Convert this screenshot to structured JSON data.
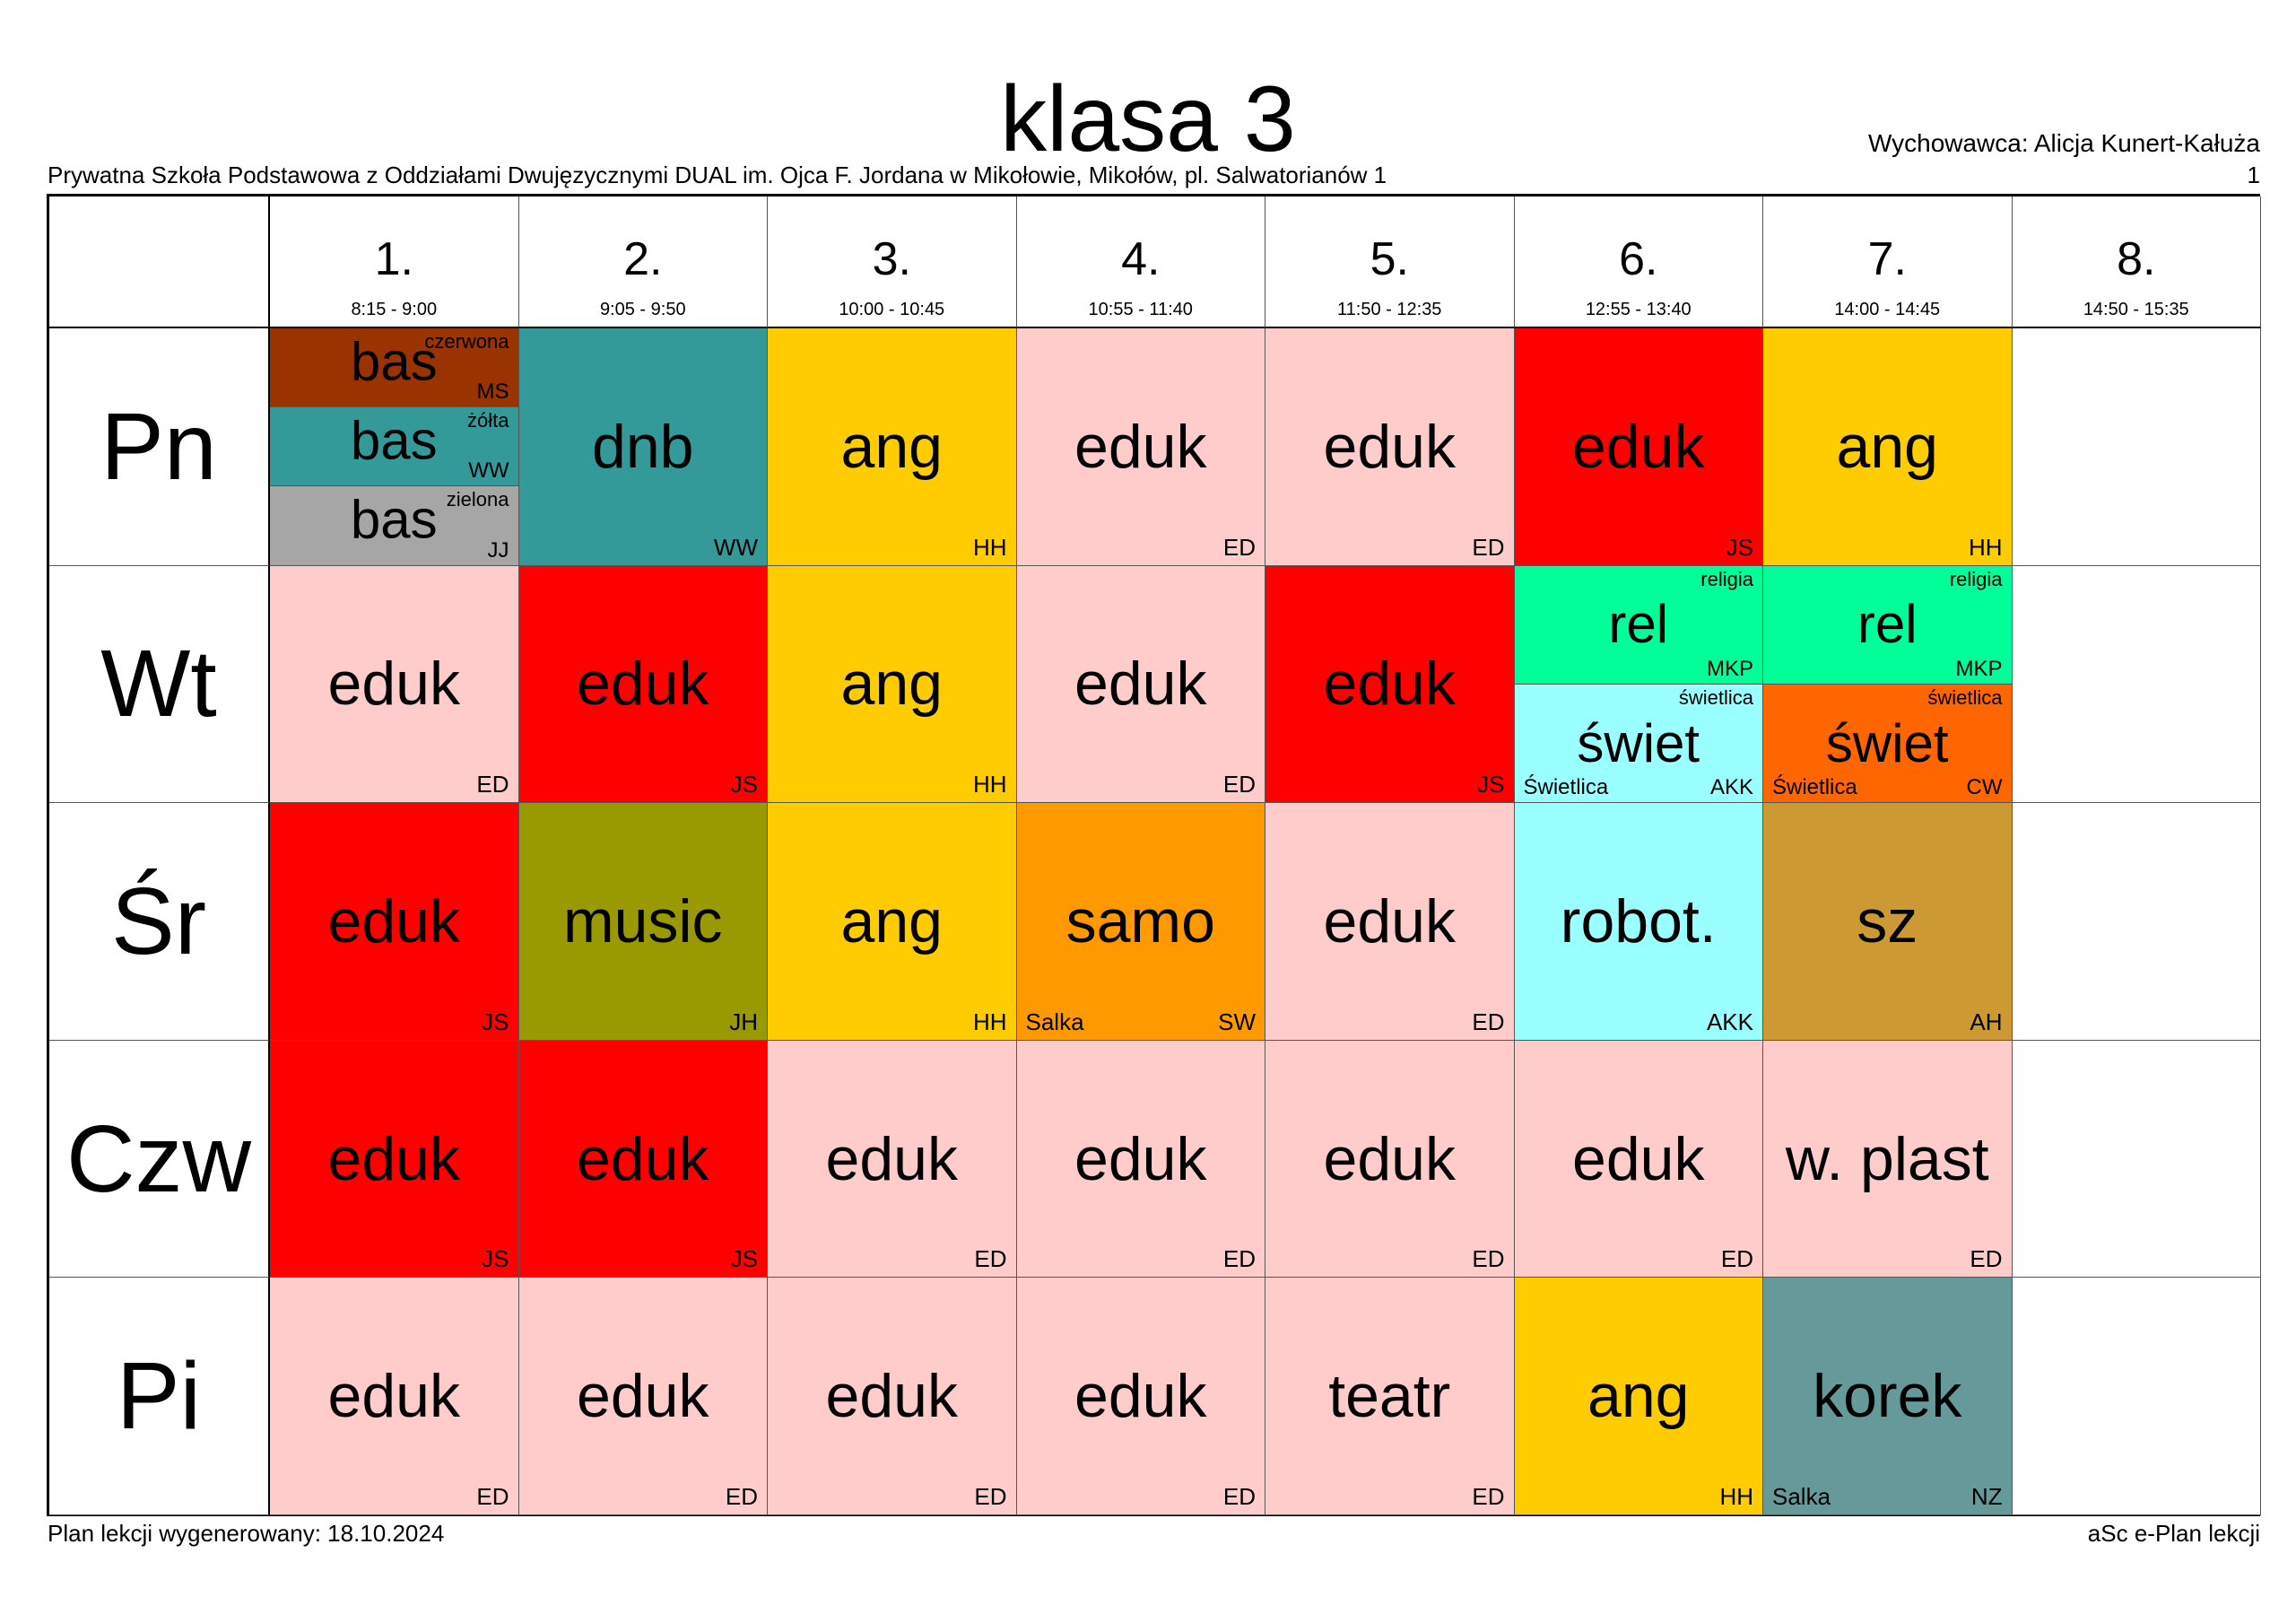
{
  "header": {
    "title": "klasa 3",
    "school": "Prywatna Szkoła Podstawowa z Oddziałami Dwujęzycznymi DUAL im. Ojca F. Jordana w Mikołowie, Mikołów, pl. Salwatorianów 1",
    "teacher": "Wychowawca: Alicja Kunert-Kałuża",
    "page_number": "1"
  },
  "periods": [
    {
      "num": "1.",
      "time": "8:15 - 9:00"
    },
    {
      "num": "2.",
      "time": "9:05 - 9:50"
    },
    {
      "num": "3.",
      "time": "10:00 - 10:45"
    },
    {
      "num": "4.",
      "time": "10:55 - 11:40"
    },
    {
      "num": "5.",
      "time": "11:50 - 12:35"
    },
    {
      "num": "6.",
      "time": "12:55 - 13:40"
    },
    {
      "num": "7.",
      "time": "14:00 - 14:45"
    },
    {
      "num": "8.",
      "time": "14:50 - 15:35"
    }
  ],
  "days": [
    "Pn",
    "Wt",
    "Śr",
    "Czw",
    "Pi"
  ],
  "lessons": [
    {
      "day": 0,
      "period": 0,
      "part": 0,
      "parts": 3,
      "subject": "bas",
      "teacher": "MS",
      "group": "czerwona",
      "color": "#993300"
    },
    {
      "day": 0,
      "period": 0,
      "part": 1,
      "parts": 3,
      "subject": "bas",
      "teacher": "WW",
      "group": "żółta",
      "color": "#339999"
    },
    {
      "day": 0,
      "period": 0,
      "part": 2,
      "parts": 3,
      "subject": "bas",
      "teacher": "JJ",
      "group": "zielona",
      "color": "#A6A6A6"
    },
    {
      "day": 0,
      "period": 1,
      "subject": "dnb",
      "teacher": "WW",
      "color": "#339999"
    },
    {
      "day": 0,
      "period": 2,
      "subject": "ang",
      "teacher": "HH",
      "color": "#FFCC00"
    },
    {
      "day": 0,
      "period": 3,
      "subject": "eduk",
      "teacher": "ED",
      "color": "#FFCCCC"
    },
    {
      "day": 0,
      "period": 4,
      "subject": "eduk",
      "teacher": "ED",
      "color": "#FFCCCC"
    },
    {
      "day": 0,
      "period": 5,
      "subject": "eduk",
      "teacher": "JS",
      "color": "#FF0000"
    },
    {
      "day": 0,
      "period": 6,
      "subject": "ang",
      "teacher": "HH",
      "color": "#FFCC00"
    },
    {
      "day": 1,
      "period": 0,
      "subject": "eduk",
      "teacher": "ED",
      "color": "#FFCCCC"
    },
    {
      "day": 1,
      "period": 1,
      "subject": "eduk",
      "teacher": "JS",
      "color": "#FF0000"
    },
    {
      "day": 1,
      "period": 2,
      "subject": "ang",
      "teacher": "HH",
      "color": "#FFCC00"
    },
    {
      "day": 1,
      "period": 3,
      "subject": "eduk",
      "teacher": "ED",
      "color": "#FFCCCC"
    },
    {
      "day": 1,
      "period": 4,
      "subject": "eduk",
      "teacher": "JS",
      "color": "#FF0000"
    },
    {
      "day": 1,
      "period": 5,
      "part": 0,
      "parts": 2,
      "subject": "rel",
      "teacher": "MKP",
      "group": "religia",
      "color": "#00FF99"
    },
    {
      "day": 1,
      "period": 5,
      "part": 1,
      "parts": 2,
      "subject": "świet",
      "teacher": "AKK",
      "group": "świetlica",
      "room": "Świetlica",
      "color": "#99FFFF"
    },
    {
      "day": 1,
      "period": 6,
      "part": 0,
      "parts": 2,
      "subject": "rel",
      "teacher": "MKP",
      "group": "religia",
      "color": "#00FF99"
    },
    {
      "day": 1,
      "period": 6,
      "part": 1,
      "parts": 2,
      "subject": "świet",
      "teacher": "CW",
      "group": "świetlica",
      "room": "Świetlica",
      "color": "#FF6600"
    },
    {
      "day": 2,
      "period": 0,
      "subject": "eduk",
      "teacher": "JS",
      "color": "#FF0000"
    },
    {
      "day": 2,
      "period": 1,
      "subject": "music",
      "teacher": "JH",
      "color": "#999900"
    },
    {
      "day": 2,
      "period": 2,
      "subject": "ang",
      "teacher": "HH",
      "color": "#FFCC00"
    },
    {
      "day": 2,
      "period": 3,
      "subject": "samo",
      "teacher": "SW",
      "room": "Salka",
      "color": "#FF9900"
    },
    {
      "day": 2,
      "period": 4,
      "subject": "eduk",
      "teacher": "ED",
      "color": "#FFCCCC"
    },
    {
      "day": 2,
      "period": 5,
      "subject": "robot.",
      "teacher": "AKK",
      "color": "#99FFFF"
    },
    {
      "day": 2,
      "period": 6,
      "subject": "sz",
      "teacher": "AH",
      "color": "#CC9933"
    },
    {
      "day": 3,
      "period": 0,
      "subject": "eduk",
      "teacher": "JS",
      "color": "#FF0000"
    },
    {
      "day": 3,
      "period": 1,
      "subject": "eduk",
      "teacher": "JS",
      "color": "#FF0000"
    },
    {
      "day": 3,
      "period": 2,
      "subject": "eduk",
      "teacher": "ED",
      "color": "#FFCCCC"
    },
    {
      "day": 3,
      "period": 3,
      "subject": "eduk",
      "teacher": "ED",
      "color": "#FFCCCC"
    },
    {
      "day": 3,
      "period": 4,
      "subject": "eduk",
      "teacher": "ED",
      "color": "#FFCCCC"
    },
    {
      "day": 3,
      "period": 5,
      "subject": "eduk",
      "teacher": "ED",
      "color": "#FFCCCC"
    },
    {
      "day": 3,
      "period": 6,
      "subject": "w. plast",
      "teacher": "ED",
      "color": "#FFCCCC"
    },
    {
      "day": 4,
      "period": 0,
      "subject": "eduk",
      "teacher": "ED",
      "color": "#FFCCCC"
    },
    {
      "day": 4,
      "period": 1,
      "subject": "eduk",
      "teacher": "ED",
      "color": "#FFCCCC"
    },
    {
      "day": 4,
      "period": 2,
      "subject": "eduk",
      "teacher": "ED",
      "color": "#FFCCCC"
    },
    {
      "day": 4,
      "period": 3,
      "subject": "eduk",
      "teacher": "ED",
      "color": "#FFCCCC"
    },
    {
      "day": 4,
      "period": 4,
      "subject": "teatr",
      "teacher": "ED",
      "color": "#FFCCCC"
    },
    {
      "day": 4,
      "period": 5,
      "subject": "ang",
      "teacher": "HH",
      "color": "#FFCC00"
    },
    {
      "day": 4,
      "period": 6,
      "subject": "korek",
      "teacher": "NZ",
      "room": "Salka",
      "color": "#669999"
    }
  ],
  "footer": {
    "generated": "Plan lekcji wygenerowany: 18.10.2024",
    "vendor": "aSc e-Plan lekcji"
  }
}
